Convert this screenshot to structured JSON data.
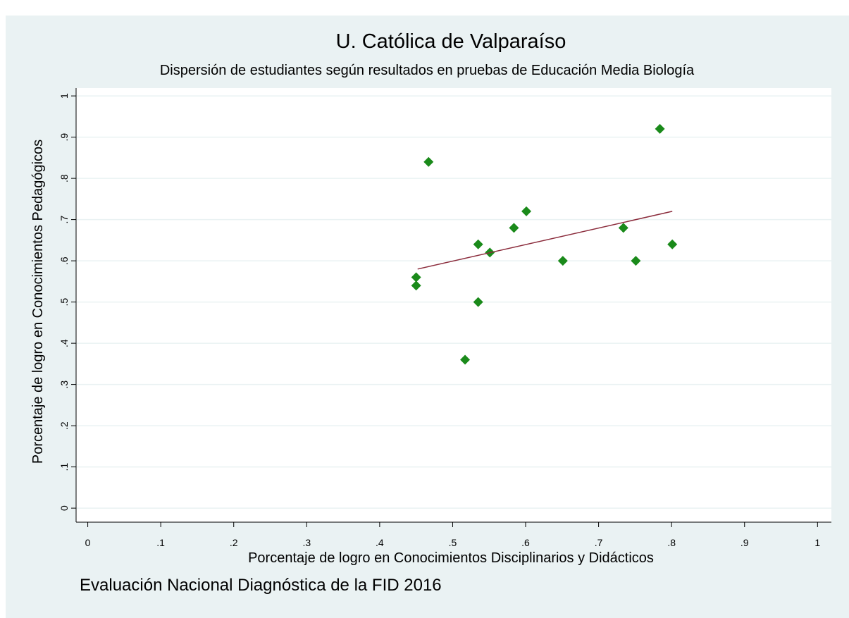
{
  "chart_data": {
    "type": "scatter",
    "title": "U. Católica de Valparaíso",
    "subtitle": "Dispersión de estudiantes según resultados en pruebas de Educación Media Biología",
    "x_label": "Porcentaje de logro en Conocimientos Disciplinarios y Didácticos",
    "y_label": "Porcentaje de logro en Conocimientos Pedagógicos",
    "note": "Evaluación Nacional Diagnóstica de la FID 2016",
    "xlim": [
      -0.016,
      1.019
    ],
    "ylim": [
      -0.034,
      1.019
    ],
    "xticks": [
      0,
      {
        "value": 0.1,
        "label": ".1"
      },
      {
        "value": 0.2,
        "label": ".2"
      },
      {
        "value": 0.3,
        "label": ".3"
      },
      {
        "value": 0.4,
        "label": ".4"
      },
      {
        "value": 0.5,
        "label": ".5"
      },
      {
        "value": 0.6,
        "label": ".6"
      },
      {
        "value": 0.7,
        "label": ".7"
      },
      {
        "value": 0.8,
        "label": ".8"
      },
      {
        "value": 0.9,
        "label": ".9"
      },
      1
    ],
    "yticks": [
      0,
      {
        "value": 0.1,
        "label": ".1"
      },
      {
        "value": 0.2,
        "label": ".2"
      },
      {
        "value": 0.3,
        "label": ".3"
      },
      {
        "value": 0.4,
        "label": ".4"
      },
      {
        "value": 0.5,
        "label": ".5"
      },
      {
        "value": 0.6,
        "label": ".6"
      },
      {
        "value": 0.7,
        "label": ".7"
      },
      {
        "value": 0.8,
        "label": ".8"
      },
      {
        "value": 0.9,
        "label": ".9"
      },
      1
    ],
    "grid": true,
    "series": [
      {
        "color": "#1a8a1a",
        "x": [
          0.45,
          0.45,
          0.467,
          0.535,
          0.535,
          0.517,
          0.551,
          0.584,
          0.601,
          0.651,
          0.734,
          0.751,
          0.784,
          0.801
        ],
        "y": [
          0.56,
          0.54,
          0.84,
          0.64,
          0.5,
          0.36,
          0.62,
          0.68,
          0.72,
          0.6,
          0.68,
          0.6,
          0.92,
          0.64
        ]
      }
    ],
    "fit": {
      "color": "#8b2c3c",
      "x": [
        0.452,
        0.801
      ],
      "y": [
        0.58,
        0.72
      ]
    }
  }
}
